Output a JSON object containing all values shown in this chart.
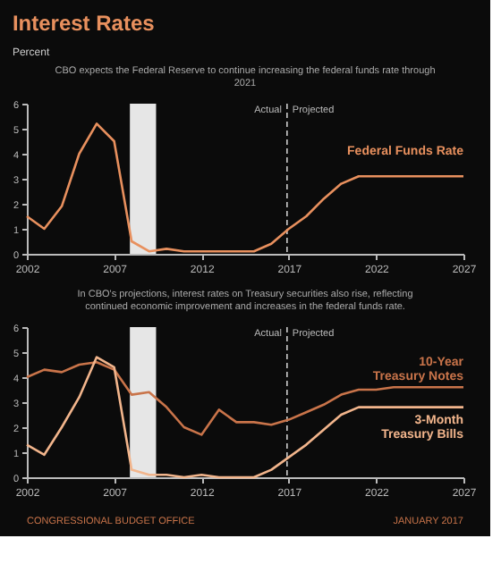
{
  "chart_data": [
    {
      "type": "line",
      "title": "Interest Rates",
      "ylabel": "Percent",
      "subtitle": "CBO expects the Federal Reserve to continue increasing the federal funds rate through 2021",
      "x": [
        2002,
        2003,
        2004,
        2005,
        2006,
        2007,
        2008,
        2009,
        2010,
        2011,
        2012,
        2013,
        2014,
        2015,
        2016,
        2017,
        2018,
        2019,
        2020,
        2021,
        2022,
        2023,
        2024,
        2025,
        2026,
        2027
      ],
      "series": [
        {
          "name": "Federal Funds Rate",
          "color": "#e8905e",
          "values": [
            1.5,
            1.0,
            1.9,
            4.0,
            5.2,
            4.5,
            0.5,
            0.1,
            0.2,
            0.1,
            0.1,
            0.1,
            0.1,
            0.1,
            0.4,
            1.0,
            1.5,
            2.2,
            2.8,
            3.1,
            3.1,
            3.1,
            3.1,
            3.1,
            3.1,
            3.1
          ]
        }
      ],
      "xlim": [
        2002,
        2027
      ],
      "xticks": [
        2002,
        2007,
        2012,
        2017,
        2022,
        2027
      ],
      "ylim": [
        0,
        6
      ],
      "yticks": [
        0,
        1,
        2,
        3,
        4,
        5,
        6
      ],
      "bands": [
        {
          "axis": "x",
          "from": 2007.9,
          "to": 2009.4,
          "color": "#e6e6e6"
        }
      ],
      "ref_lines": [
        {
          "axis": "x",
          "value": 2016.9,
          "color": "#cccccc",
          "line_style": "dashed"
        }
      ],
      "annotations": [
        "Actual",
        "Projected"
      ],
      "grid": false,
      "legend": false
    },
    {
      "type": "line",
      "subtitle": "In CBO's projections, interest rates on Treasury securities also rise, reflecting continued economic improvement and increases in the federal funds rate.",
      "x": [
        2002,
        2003,
        2004,
        2005,
        2006,
        2007,
        2008,
        2009,
        2010,
        2011,
        2012,
        2013,
        2014,
        2015,
        2016,
        2017,
        2018,
        2019,
        2020,
        2021,
        2022,
        2023,
        2024,
        2025,
        2026,
        2027
      ],
      "series": [
        {
          "name": "10-Year Treasury Notes",
          "color": "#c9744a",
          "values": [
            4.0,
            4.3,
            4.2,
            4.5,
            4.6,
            4.3,
            3.3,
            3.4,
            2.8,
            2.0,
            1.7,
            2.7,
            2.2,
            2.2,
            2.1,
            2.3,
            2.6,
            2.9,
            3.3,
            3.5,
            3.5,
            3.6,
            3.6,
            3.6,
            3.6,
            3.6
          ]
        },
        {
          "name": "3-Month Treasury Bills",
          "color": "#f2b58c",
          "values": [
            1.3,
            0.9,
            2.0,
            3.2,
            4.8,
            4.4,
            0.3,
            0.1,
            0.1,
            0.0,
            0.1,
            0.0,
            0.0,
            0.0,
            0.3,
            0.8,
            1.3,
            1.9,
            2.5,
            2.8,
            2.8,
            2.8,
            2.8,
            2.8,
            2.8,
            2.8
          ]
        }
      ],
      "xlim": [
        2002,
        2027
      ],
      "xticks": [
        2002,
        2007,
        2012,
        2017,
        2022,
        2027
      ],
      "ylim": [
        0,
        6
      ],
      "yticks": [
        0,
        1,
        2,
        3,
        4,
        5,
        6
      ],
      "bands": [
        {
          "axis": "x",
          "from": 2007.9,
          "to": 2009.4,
          "color": "#e6e6e6"
        }
      ],
      "ref_lines": [
        {
          "axis": "x",
          "value": 2016.9,
          "color": "#cccccc",
          "line_style": "dashed"
        }
      ],
      "annotations": [
        "Actual",
        "Projected",
        "CONGRESSIONAL BUDGET OFFICE",
        "JANUARY 2017"
      ],
      "grid": false,
      "legend": false
    }
  ]
}
